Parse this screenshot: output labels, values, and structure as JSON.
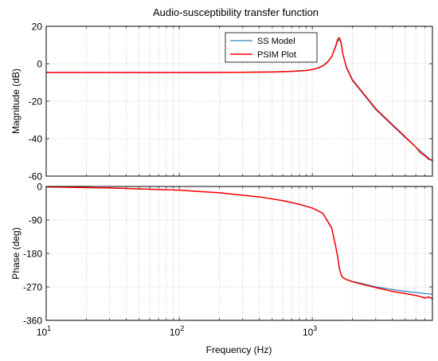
{
  "chart_data": {
    "type": "line",
    "title": "Audio-susceptibility transfer function",
    "xlabel": "Frequency  (Hz)",
    "x_scale": "log",
    "xlim": [
      10,
      8000
    ],
    "x_ticks": [
      {
        "value": 10,
        "base": "10",
        "exp": "1"
      },
      {
        "value": 100,
        "base": "10",
        "exp": "2"
      },
      {
        "value": 1000,
        "base": "10",
        "exp": "3"
      }
    ],
    "grid": true,
    "colors": {
      "ss_model": "#2e86c1",
      "psim_plot": "#ff0000"
    },
    "panels": [
      {
        "name": "magnitude",
        "ylabel": "Magnitude (dB)",
        "ylim": [
          -60,
          20
        ],
        "y_ticks": [
          "20",
          "0",
          "-20",
          "-40",
          "-60"
        ],
        "legend": {
          "placement": "top-right",
          "entries": [
            "SS Model",
            "PSIM Plot"
          ]
        },
        "series": [
          {
            "name": "SS Model",
            "x": [
              10,
              100,
              300,
              500,
              700,
              900,
              1000,
              1100,
              1200,
              1300,
              1400,
              1500,
              1550,
              1600,
              1650,
              1700,
              1800,
              2000,
              2500,
              3000,
              4000,
              5000,
              6000,
              7000,
              8000
            ],
            "y": [
              -4.6,
              -4.6,
              -4.5,
              -4.3,
              -4.0,
              -3.5,
              -3.0,
              -2.2,
              -1.0,
              1.0,
              4.0,
              9.0,
              12.0,
              13.0,
              10.5,
              5.0,
              -2.0,
              -9.0,
              -17.5,
              -24.5,
              -33.0,
              -39.5,
              -44.5,
              -48.5,
              -52.0
            ]
          },
          {
            "name": "PSIM Plot",
            "x": [
              10,
              100,
              300,
              500,
              700,
              900,
              1000,
              1100,
              1200,
              1300,
              1400,
              1500,
              1550,
              1600,
              1650,
              1700,
              1800,
              2000,
              2500,
              3000,
              4000,
              5000,
              6000,
              6500,
              7000,
              7500,
              8000
            ],
            "y": [
              -4.7,
              -4.7,
              -4.6,
              -4.4,
              -4.1,
              -3.6,
              -3.1,
              -2.3,
              -1.2,
              0.8,
              3.8,
              9.5,
              13.0,
              14.0,
              11.0,
              5.0,
              -1.5,
              -8.5,
              -17.0,
              -24.0,
              -32.5,
              -39.0,
              -44.5,
              -47.5,
              -49.0,
              -51.0,
              -51.5
            ]
          }
        ]
      },
      {
        "name": "phase",
        "ylabel": "Phase (deg)",
        "ylim": [
          -360,
          0
        ],
        "y_ticks": [
          "0",
          "-90",
          "-180",
          "-270",
          "-360"
        ],
        "series": [
          {
            "name": "SS Model",
            "x": [
              10,
              30,
              100,
              200,
              400,
              600,
              800,
              1000,
              1200,
              1400,
              1500,
              1550,
              1600,
              1650,
              1700,
              1800,
              2000,
              2500,
              3000,
              4000,
              5000,
              6000,
              7000,
              8000
            ],
            "y": [
              -1,
              -4,
              -10,
              -17,
              -28,
              -38,
              -48,
              -58,
              -72,
              -110,
              -160,
              -185,
              -220,
              -238,
              -245,
              -250,
              -255,
              -263,
              -270,
              -277,
              -282,
              -285,
              -288,
              -290
            ]
          },
          {
            "name": "PSIM Plot",
            "x": [
              10,
              30,
              100,
              200,
              400,
              600,
              800,
              1000,
              1200,
              1400,
              1500,
              1550,
              1600,
              1650,
              1700,
              1800,
              2000,
              2500,
              3000,
              4000,
              5000,
              6000,
              6500,
              7000,
              7500,
              8000
            ],
            "y": [
              -1,
              -4,
              -10,
              -17,
              -28,
              -38,
              -48,
              -58,
              -72,
              -112,
              -162,
              -188,
              -222,
              -238,
              -245,
              -250,
              -256,
              -265,
              -272,
              -282,
              -288,
              -293,
              -296,
              -300,
              -297,
              -302
            ]
          }
        ]
      }
    ]
  }
}
